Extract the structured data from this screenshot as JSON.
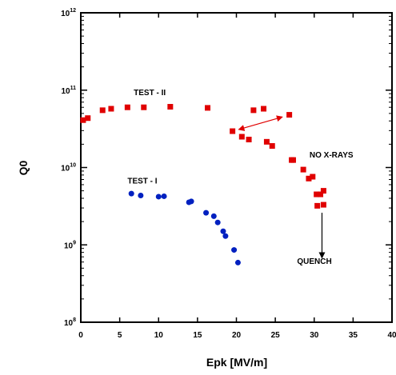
{
  "chart_data": {
    "type": "scatter",
    "xlabel": "Epk [MV/m]",
    "ylabel": "Q0",
    "xlim": [
      0,
      40
    ],
    "ylim_exponent": [
      8,
      12
    ],
    "y_scale": "log",
    "grid": false,
    "x_ticks": [
      "0",
      "5",
      "10",
      "15",
      "20",
      "25",
      "30",
      "35",
      "40"
    ],
    "y_ticks": [
      {
        "base": "10",
        "exp": "8"
      },
      {
        "base": "10",
        "exp": "9"
      },
      {
        "base": "10",
        "exp": "10"
      },
      {
        "base": "10",
        "exp": "11"
      },
      {
        "base": "10",
        "exp": "12"
      }
    ],
    "series": [
      {
        "name": "TEST - II",
        "marker": "square",
        "color": "#e00000",
        "points": [
          [
            0.3,
            41000000000.0
          ],
          [
            0.9,
            43500000000.0
          ],
          [
            2.8,
            55000000000.0
          ],
          [
            3.9,
            57500000000.0
          ],
          [
            6.0,
            60000000000.0
          ],
          [
            8.1,
            60000000000.0
          ],
          [
            11.5,
            61000000000.0
          ],
          [
            16.3,
            59000000000.0
          ],
          [
            22.2,
            55000000000.0
          ],
          [
            23.5,
            57500000000.0
          ],
          [
            26.8,
            48000000000.0
          ],
          [
            19.5,
            29500000000.0
          ],
          [
            20.7,
            25000000000.0
          ],
          [
            21.6,
            23000000000.0
          ],
          [
            23.9,
            21500000000.0
          ],
          [
            24.6,
            19000000000.0
          ],
          [
            27.1,
            12500000000.0
          ],
          [
            27.3,
            12500000000.0
          ],
          [
            28.6,
            9400000000.0
          ],
          [
            29.3,
            7200000000.0
          ],
          [
            29.8,
            7600000000.0
          ],
          [
            30.3,
            4500000000.0
          ],
          [
            30.8,
            4500000000.0
          ],
          [
            31.2,
            5000000000.0
          ],
          [
            30.4,
            3200000000.0
          ],
          [
            31.2,
            3300000000.0
          ]
        ]
      },
      {
        "name": "TEST - I",
        "marker": "circle",
        "color": "#0020c0",
        "points": [
          [
            6.5,
            4600000000.0
          ],
          [
            7.7,
            4350000000.0
          ],
          [
            10.0,
            4200000000.0
          ],
          [
            10.7,
            4250000000.0
          ],
          [
            13.9,
            3550000000.0
          ],
          [
            14.2,
            3650000000.0
          ],
          [
            16.1,
            2600000000.0
          ],
          [
            17.1,
            2350000000.0
          ],
          [
            17.6,
            1950000000.0
          ],
          [
            18.3,
            1500000000.0
          ],
          [
            18.6,
            1300000000.0
          ],
          [
            19.7,
            860000000.0
          ],
          [
            20.2,
            590000000.0
          ]
        ]
      }
    ],
    "annotations": [
      {
        "text": "TEST - II",
        "x": 6.8,
        "y": 86000000000.0
      },
      {
        "text": "TEST - I",
        "x": 6.0,
        "y": 6200000000.0
      },
      {
        "text": "NO X-RAYS",
        "x": 29.4,
        "y": 13500000000.0
      },
      {
        "text": "QUENCH",
        "x": 27.8,
        "y": 570000000.0
      }
    ],
    "arrows": [
      {
        "name": "double-headed-arrow",
        "style": "double",
        "color": "#e00000",
        "from": [
          20.3,
          31000000000.0
        ],
        "to": [
          25.9,
          45000000000.0
        ]
      },
      {
        "name": "quench-arrow",
        "style": "single",
        "color": "#000000",
        "from": [
          31.0,
          2600000000.0
        ],
        "to": [
          31.0,
          680000000.0
        ]
      }
    ]
  }
}
